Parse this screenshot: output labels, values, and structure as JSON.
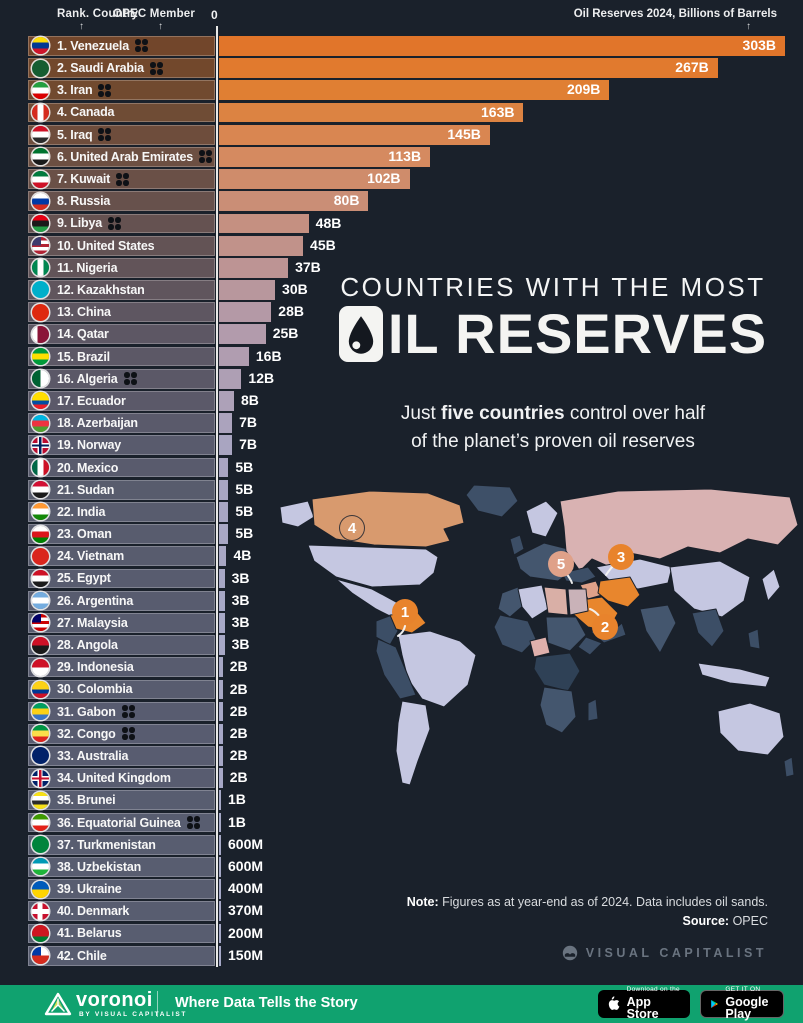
{
  "header": {
    "col_rank": "Rank. Country",
    "col_opec": "OPEC Member",
    "zero_label": "0",
    "axis_label": "Oil Reserves 2024, Billions of Barrels",
    "arrow": "↑"
  },
  "title": {
    "line1": "COUNTRIES WITH THE MOST",
    "line2_rest": "IL RESERVES"
  },
  "subtitle": {
    "pre": "Just ",
    "bold": "five countries",
    "post": " control over half",
    "line2": "of the planet’s proven oil reserves"
  },
  "chart_data": {
    "type": "bar",
    "title": "Countries with the Most Oil Reserves",
    "unit": "Billions of Barrels",
    "year_label": "Oil Reserves 2024",
    "xlim": [
      0,
      303
    ],
    "countries": [
      {
        "rank": 1,
        "name": "Venezuela",
        "opec": true,
        "value": 303,
        "label": "303B",
        "flag": [
          "h",
          "#FCDD09",
          "#003893",
          "#CF142B"
        ]
      },
      {
        "rank": 2,
        "name": "Saudi Arabia",
        "opec": true,
        "value": 267,
        "label": "267B",
        "flag": [
          "h",
          "#165D31"
        ]
      },
      {
        "rank": 3,
        "name": "Iran",
        "opec": true,
        "value": 209,
        "label": "209B",
        "flag": [
          "h",
          "#239F40",
          "#FFFFFF",
          "#DA0000"
        ]
      },
      {
        "rank": 4,
        "name": "Canada",
        "opec": false,
        "value": 163,
        "label": "163B",
        "flag": [
          "v",
          "#D52B1E",
          "#FFFFFF",
          "#D52B1E"
        ]
      },
      {
        "rank": 5,
        "name": "Iraq",
        "opec": true,
        "value": 145,
        "label": "145B",
        "flag": [
          "h",
          "#CE1126",
          "#FFFFFF",
          "#2B2B2B"
        ]
      },
      {
        "rank": 6,
        "name": "United Arab Emirates",
        "opec": true,
        "value": 113,
        "label": "113B",
        "flag": [
          "h",
          "#00732F",
          "#FFFFFF",
          "#1A1A1A"
        ]
      },
      {
        "rank": 7,
        "name": "Kuwait",
        "opec": true,
        "value": 102,
        "label": "102B",
        "flag": [
          "h",
          "#007A3D",
          "#FFFFFF",
          "#CE1126"
        ]
      },
      {
        "rank": 8,
        "name": "Russia",
        "opec": false,
        "value": 80,
        "label": "80B",
        "flag": [
          "h",
          "#FFFFFF",
          "#0039A6",
          "#D52B1E"
        ]
      },
      {
        "rank": 9,
        "name": "Libya",
        "opec": true,
        "value": 48,
        "label": "48B",
        "flag": [
          "h",
          "#E70013",
          "#1A1A1A",
          "#239E46"
        ]
      },
      {
        "rank": 10,
        "name": "United States",
        "opec": false,
        "value": 45,
        "label": "45B",
        "flag": [
          "c",
          "#3C3B6E",
          "#B22234",
          "#FFFFFF",
          "#B22234",
          "#FFFFFF",
          "#B22234"
        ]
      },
      {
        "rank": 11,
        "name": "Nigeria",
        "opec": false,
        "value": 37,
        "label": "37B",
        "flag": [
          "v",
          "#008751",
          "#FFFFFF",
          "#008751"
        ]
      },
      {
        "rank": 12,
        "name": "Kazakhstan",
        "opec": false,
        "value": 30,
        "label": "30B",
        "flag": [
          "h",
          "#00AFCA"
        ]
      },
      {
        "rank": 13,
        "name": "China",
        "opec": false,
        "value": 28,
        "label": "28B",
        "flag": [
          "h",
          "#DE2910"
        ]
      },
      {
        "rank": 14,
        "name": "Qatar",
        "opec": false,
        "value": 25,
        "label": "25B",
        "flag": [
          "v",
          "#FFFFFF",
          "#8A1538",
          "#8A1538"
        ]
      },
      {
        "rank": 15,
        "name": "Brazil",
        "opec": false,
        "value": 16,
        "label": "16B",
        "flag": [
          "h",
          "#009B3A",
          "#FEDF00",
          "#009B3A"
        ]
      },
      {
        "rank": 16,
        "name": "Algeria",
        "opec": true,
        "value": 12,
        "label": "12B",
        "flag": [
          "v",
          "#006233",
          "#FFFFFF"
        ]
      },
      {
        "rank": 17,
        "name": "Ecuador",
        "opec": false,
        "value": 8,
        "label": "8B",
        "flag": [
          "h",
          "#FFDD00",
          "#FFDD00",
          "#034EA2",
          "#ED1C24"
        ]
      },
      {
        "rank": 18,
        "name": "Azerbaijan",
        "opec": false,
        "value": 7,
        "label": "7B",
        "flag": [
          "h",
          "#00B5E2",
          "#EF3340",
          "#509E2F"
        ]
      },
      {
        "rank": 19,
        "name": "Norway",
        "opec": false,
        "value": 7,
        "label": "7B",
        "flag": [
          "x",
          "#BA0C2F",
          "#FFFFFF",
          "#00205B"
        ]
      },
      {
        "rank": 20,
        "name": "Mexico",
        "opec": false,
        "value": 5,
        "label": "5B",
        "flag": [
          "v",
          "#006847",
          "#FFFFFF",
          "#CE1126"
        ]
      },
      {
        "rank": 21,
        "name": "Sudan",
        "opec": false,
        "value": 5,
        "label": "5B",
        "flag": [
          "h",
          "#D21034",
          "#FFFFFF",
          "#1A1A1A"
        ]
      },
      {
        "rank": 22,
        "name": "India",
        "opec": false,
        "value": 5,
        "label": "5B",
        "flag": [
          "h",
          "#FF9933",
          "#FFFFFF",
          "#138808"
        ]
      },
      {
        "rank": 23,
        "name": "Oman",
        "opec": false,
        "value": 5,
        "label": "5B",
        "flag": [
          "h",
          "#FFFFFF",
          "#DB161B",
          "#008000"
        ]
      },
      {
        "rank": 24,
        "name": "Vietnam",
        "opec": false,
        "value": 4,
        "label": "4B",
        "flag": [
          "h",
          "#DA251D"
        ]
      },
      {
        "rank": 25,
        "name": "Egypt",
        "opec": false,
        "value": 3,
        "label": "3B",
        "flag": [
          "h",
          "#CE1126",
          "#FFFFFF",
          "#1A1A1A"
        ]
      },
      {
        "rank": 26,
        "name": "Argentina",
        "opec": false,
        "value": 3,
        "label": "3B",
        "flag": [
          "h",
          "#74ACDF",
          "#FFFFFF",
          "#74ACDF"
        ]
      },
      {
        "rank": 27,
        "name": "Malaysia",
        "opec": false,
        "value": 3,
        "label": "3B",
        "flag": [
          "c",
          "#010066",
          "#CC0001",
          "#FFFFFF",
          "#CC0001",
          "#FFFFFF",
          "#CC0001"
        ]
      },
      {
        "rank": 28,
        "name": "Angola",
        "opec": false,
        "value": 3,
        "label": "3B",
        "flag": [
          "h",
          "#CE1126",
          "#1A1A1A"
        ]
      },
      {
        "rank": 29,
        "name": "Indonesia",
        "opec": false,
        "value": 2,
        "label": "2B",
        "flag": [
          "h",
          "#CE1126",
          "#FFFFFF"
        ]
      },
      {
        "rank": 30,
        "name": "Colombia",
        "opec": false,
        "value": 2,
        "label": "2B",
        "flag": [
          "h",
          "#FCD116",
          "#FCD116",
          "#003893",
          "#CE1126"
        ]
      },
      {
        "rank": 31,
        "name": "Gabon",
        "opec": true,
        "value": 2,
        "label": "2B",
        "flag": [
          "h",
          "#009E60",
          "#FCD116",
          "#3A75C4"
        ]
      },
      {
        "rank": 32,
        "name": "Congo",
        "opec": true,
        "value": 2,
        "label": "2B",
        "flag": [
          "h",
          "#009543",
          "#FBDE4A",
          "#DC241F"
        ]
      },
      {
        "rank": 33,
        "name": "Australia",
        "opec": false,
        "value": 2,
        "label": "2B",
        "flag": [
          "h",
          "#012169"
        ]
      },
      {
        "rank": 34,
        "name": "United Kingdom",
        "opec": false,
        "value": 2,
        "label": "2B",
        "flag": [
          "x",
          "#012169",
          "#FFFFFF",
          "#C8102E"
        ]
      },
      {
        "rank": 35,
        "name": "Brunei",
        "opec": false,
        "value": 1,
        "label": "1B",
        "flag": [
          "h",
          "#F7E017",
          "#FFFFFF",
          "#2B2B2B",
          "#F7E017"
        ]
      },
      {
        "rank": 36,
        "name": "Equatorial Guinea",
        "opec": true,
        "value": 1,
        "label": "1B",
        "flag": [
          "h",
          "#3E9A00",
          "#FFFFFF",
          "#E32118"
        ]
      },
      {
        "rank": 37,
        "name": "Turkmenistan",
        "opec": false,
        "value": 0.6,
        "label": "600M",
        "flag": [
          "h",
          "#00843D"
        ]
      },
      {
        "rank": 38,
        "name": "Uzbekistan",
        "opec": false,
        "value": 0.6,
        "label": "600M",
        "flag": [
          "h",
          "#0099B5",
          "#FFFFFF",
          "#1EB53A"
        ]
      },
      {
        "rank": 39,
        "name": "Ukraine",
        "opec": false,
        "value": 0.4,
        "label": "400M",
        "flag": [
          "h",
          "#005BBB",
          "#FFD500"
        ]
      },
      {
        "rank": 40,
        "name": "Denmark",
        "opec": false,
        "value": 0.37,
        "label": "370M",
        "flag": [
          "x",
          "#C8102E",
          "#FFFFFF"
        ]
      },
      {
        "rank": 41,
        "name": "Belarus",
        "opec": false,
        "value": 0.2,
        "label": "200M",
        "flag": [
          "h",
          "#CE1720",
          "#CE1720",
          "#007C30"
        ]
      },
      {
        "rank": 42,
        "name": "Chile",
        "opec": false,
        "value": 0.15,
        "label": "150M",
        "flag": [
          "c",
          "#0039A6",
          "#FFFFFF",
          "#D52B1E"
        ]
      }
    ]
  },
  "map": {
    "markers": [
      {
        "n": "1",
        "country": "Venezuela"
      },
      {
        "n": "2",
        "country": "Saudi Arabia"
      },
      {
        "n": "3",
        "country": "Iran"
      },
      {
        "n": "4",
        "country": "Canada"
      },
      {
        "n": "5",
        "country": "Iraq"
      }
    ]
  },
  "note": {
    "label": "Note:",
    "text": " Figures as at year-end as of 2024. Data includes oil sands.",
    "source_label": "Source:",
    "source": " OPEC"
  },
  "credit": {
    "brand": "VISUAL CAPITALIST"
  },
  "footer": {
    "brand": "voronoi",
    "byline": "BY VISUAL CAPITALIST",
    "tagline": "Where Data Tells the Story",
    "appstore_small": "Download on the",
    "appstore_big": "App Store",
    "play_small": "GET IT ON",
    "play_big": "Google Play"
  },
  "colors": {
    "background": "#1A212B",
    "bar_stops": [
      [
        0,
        "#E1752A"
      ],
      [
        0.05,
        "#E07F33"
      ],
      [
        0.12,
        "#D58A5F"
      ],
      [
        0.2,
        "#C49083"
      ],
      [
        0.3,
        "#B39AA9"
      ],
      [
        0.44,
        "#A9A5C1"
      ],
      [
        0.62,
        "#A7A8C6"
      ],
      [
        1,
        "#A6A9C8"
      ]
    ],
    "axis": "#E9E9E7",
    "footer_green": "#10A26F",
    "marker_orange": "#E8832C",
    "marker_salmon": "#DFA189",
    "map_highlight": "#E8862D",
    "map_russia": "#D9B2B2",
    "map_light": "#C5C7E1",
    "map_dark": "#3C4E66"
  }
}
